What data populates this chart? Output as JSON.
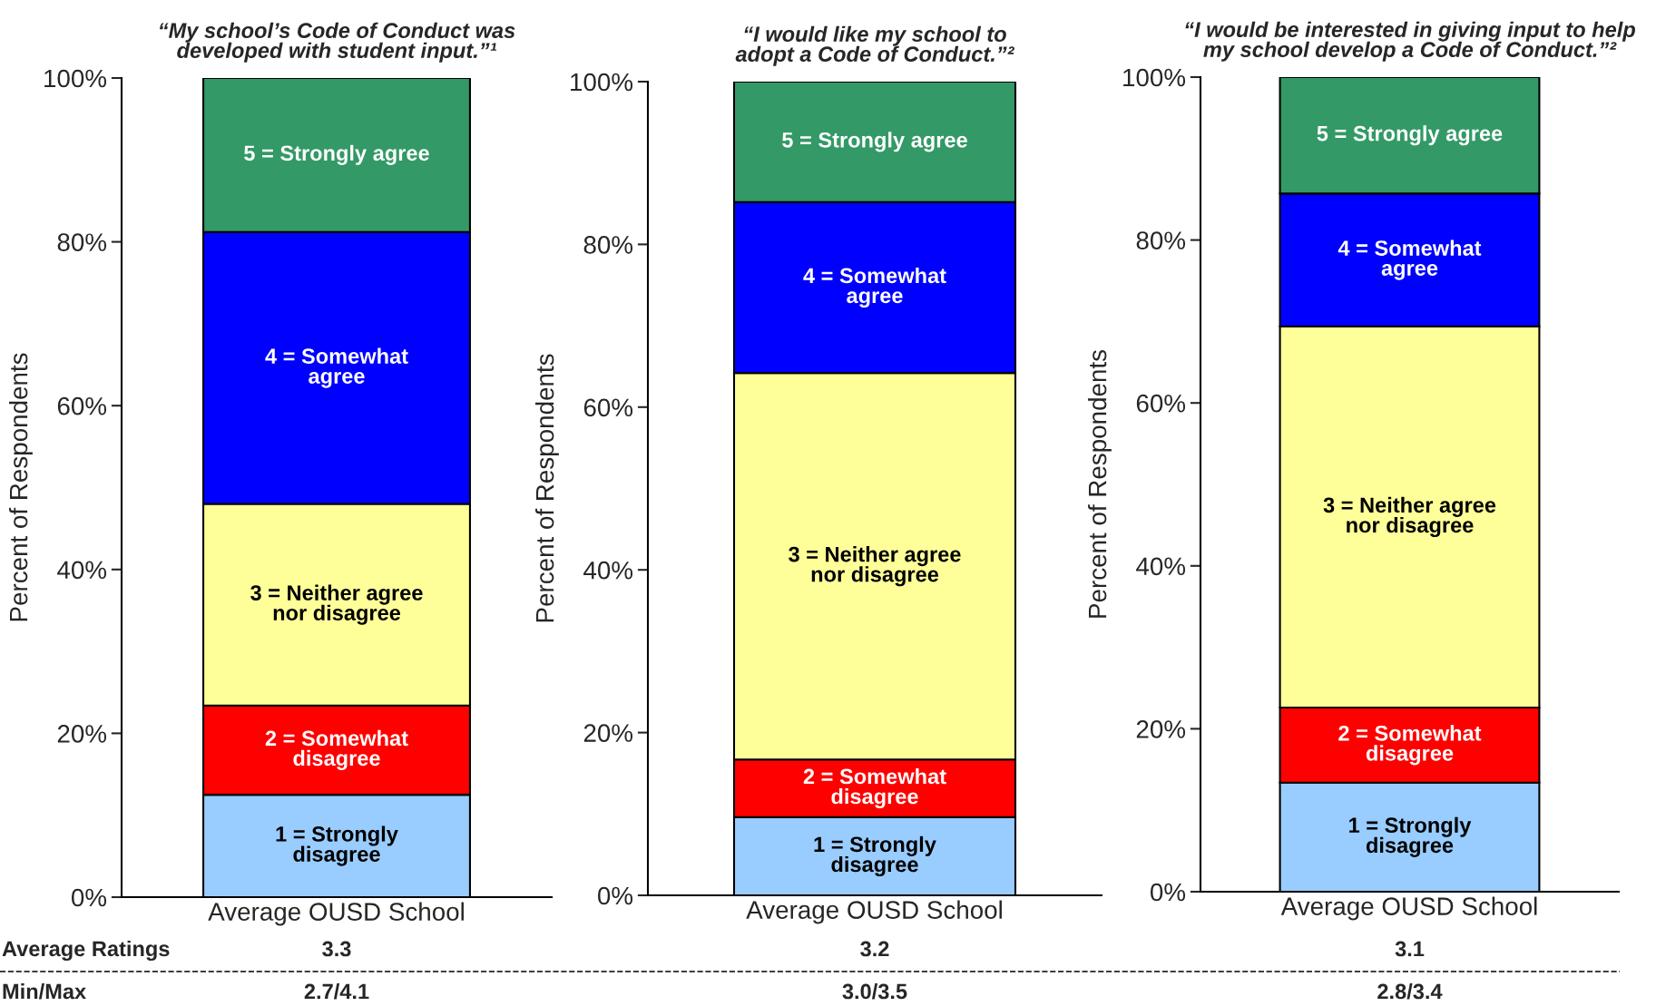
{
  "chart_data": [
    {
      "type": "bar",
      "stacked": true,
      "title": "“My school’s Code of Conduct was\ndeveloped with student input.”¹",
      "ylabel": "Percent of Respondents",
      "categories": [
        "Average OUSD School"
      ],
      "ylim": [
        0,
        100
      ],
      "yticks": [
        {
          "value": 0,
          "label": "0%"
        },
        {
          "value": 20,
          "label": "20%"
        },
        {
          "value": 40,
          "label": "40%"
        },
        {
          "value": 60,
          "label": "60%"
        },
        {
          "value": 80,
          "label": "80%"
        },
        {
          "value": 100,
          "label": "100%"
        }
      ],
      "grid": false,
      "legend": false,
      "series": [
        {
          "name": "1 = Strongly\ndisagree",
          "color": "#99ccff",
          "values": [
            12.5
          ]
        },
        {
          "name": "2 = Somewhat\ndisagree",
          "color": "#ff0000",
          "values": [
            10.9
          ]
        },
        {
          "name": "3 = Neither agree\nnor disagree",
          "color": "#ffff99",
          "values": [
            24.6
          ]
        },
        {
          "name": "4 = Somewhat\nagree",
          "color": "#0000ff",
          "values": [
            33.2
          ]
        },
        {
          "name": "5 = Strongly agree",
          "color": "#339966",
          "values": [
            18.8
          ]
        }
      ],
      "annotations": [
        "Average Ratings",
        "3.3",
        "Min/Max",
        "2.7/4.1"
      ]
    },
    {
      "type": "bar",
      "stacked": true,
      "title": "“I would like my school to\nadopt a Code of Conduct.”²",
      "ylabel": "Percent of Respondents",
      "categories": [
        "Average OUSD School"
      ],
      "ylim": [
        0,
        100
      ],
      "yticks": [
        {
          "value": 0,
          "label": "0%"
        },
        {
          "value": 20,
          "label": "20%"
        },
        {
          "value": 40,
          "label": "40%"
        },
        {
          "value": 60,
          "label": "60%"
        },
        {
          "value": 80,
          "label": "80%"
        },
        {
          "value": 100,
          "label": "100%"
        }
      ],
      "grid": false,
      "legend": false,
      "series": [
        {
          "name": "1 = Strongly\ndisagree",
          "color": "#99ccff",
          "values": [
            9.6
          ]
        },
        {
          "name": "2 = Somewhat\ndisagree",
          "color": "#ff0000",
          "values": [
            7.1
          ]
        },
        {
          "name": "3 = Neither agree\nnor disagree",
          "color": "#ffff99",
          "values": [
            47.5
          ]
        },
        {
          "name": "4 = Somewhat\nagree",
          "color": "#0000ff",
          "values": [
            21.0
          ]
        },
        {
          "name": "5 = Strongly agree",
          "color": "#339966",
          "values": [
            14.8
          ]
        }
      ],
      "annotations": [
        "3.2",
        "3.0/3.5"
      ]
    },
    {
      "type": "bar",
      "stacked": true,
      "title": "“I would be interested in giving input to help\nmy school develop a Code of Conduct.”²",
      "ylabel": "Percent of Respondents",
      "categories": [
        "Average OUSD School"
      ],
      "ylim": [
        0,
        100
      ],
      "yticks": [
        {
          "value": 0,
          "label": "0%"
        },
        {
          "value": 20,
          "label": "20%"
        },
        {
          "value": 40,
          "label": "40%"
        },
        {
          "value": 60,
          "label": "60%"
        },
        {
          "value": 80,
          "label": "80%"
        },
        {
          "value": 100,
          "label": "100%"
        }
      ],
      "grid": false,
      "legend": false,
      "series": [
        {
          "name": "1 = Strongly\ndisagree",
          "color": "#99ccff",
          "values": [
            13.4
          ]
        },
        {
          "name": "2 = Somewhat\ndisagree",
          "color": "#ff0000",
          "values": [
            9.2
          ]
        },
        {
          "name": "3 = Neither agree\nnor disagree",
          "color": "#ffff99",
          "values": [
            46.8
          ]
        },
        {
          "name": "4 = Somewhat\nagree",
          "color": "#0000ff",
          "values": [
            16.3
          ]
        },
        {
          "name": "5 = Strongly agree",
          "color": "#339966",
          "values": [
            14.3
          ]
        }
      ],
      "annotations": [
        "3.1",
        "2.8/3.4"
      ]
    }
  ]
}
